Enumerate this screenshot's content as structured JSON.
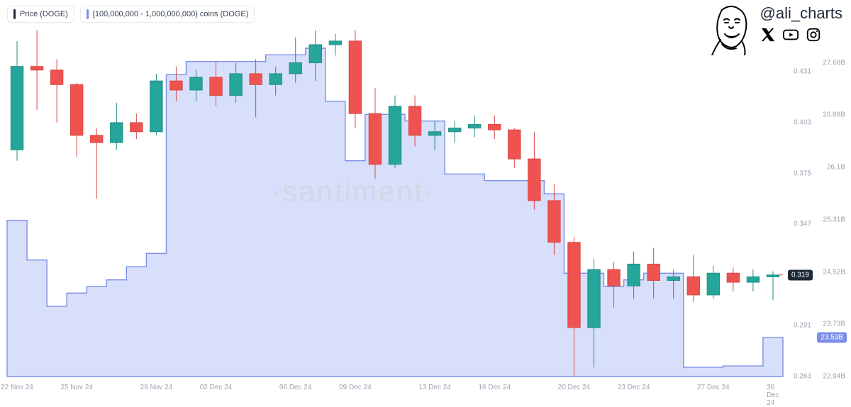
{
  "legend": {
    "price": {
      "label": "Price (DOGE)",
      "color": "#1f2937"
    },
    "supply": {
      "label": "[100,000,000 - 1,000,000,000) coins (DOGE)",
      "color": "#7d8fe8"
    }
  },
  "branding": {
    "handle": "@ali_charts",
    "socials": [
      "x-icon",
      "youtube-icon",
      "instagram-icon"
    ]
  },
  "watermark": "·santiment·",
  "watermark_style": {
    "fontsize": 42,
    "color": "#d1d5db"
  },
  "colors": {
    "candle_up_fill": "#26a69a",
    "candle_up_border": "#1e8e82",
    "candle_down_fill": "#ef5350",
    "candle_down_border": "#d84745",
    "area_fill": "#d8dffa",
    "area_stroke": "#7d8fe8",
    "axis_text": "#9ca3af",
    "background": "#ffffff"
  },
  "chart": {
    "type": "candlestick+area",
    "x_dates": [
      "22 Nov 24",
      "23 Nov 24",
      "24 Nov 24",
      "25 Nov 24",
      "26 Nov 24",
      "27 Nov 24",
      "28 Nov 24",
      "29 Nov 24",
      "30 Nov 24",
      "01 Dec 24",
      "02 Dec 24",
      "03 Dec 24",
      "04 Dec 24",
      "05 Dec 24",
      "06 Dec 24",
      "07 Dec 24",
      "08 Dec 24",
      "09 Dec 24",
      "10 Dec 24",
      "11 Dec 24",
      "12 Dec 24",
      "13 Dec 24",
      "14 Dec 24",
      "15 Dec 24",
      "16 Dec 24",
      "17 Dec 24",
      "18 Dec 24",
      "19 Dec 24",
      "20 Dec 24",
      "21 Dec 24",
      "22 Dec 24",
      "23 Dec 24",
      "24 Dec 24",
      "25 Dec 24",
      "26 Dec 24",
      "27 Dec 24",
      "28 Dec 24",
      "29 Dec 24",
      "30 Dec 24"
    ],
    "price_axis": {
      "min": 0.263,
      "max": 0.455,
      "ticks": [
        0.263,
        0.291,
        0.319,
        0.347,
        0.375,
        0.403,
        0.431
      ],
      "current_flag": "0.319"
    },
    "supply_axis": {
      "min": 22.94,
      "max": 28.2,
      "ticks": [
        22.94,
        23.73,
        24.52,
        25.31,
        26.1,
        26.89,
        27.68
      ],
      "tick_labels": [
        "22.94B",
        "23.73B",
        "24.52B",
        "25.31B",
        "26.1B",
        "26.89B",
        "27.68B"
      ],
      "current_flag": "23.53B"
    },
    "x_ticks": [
      "22 Nov 24",
      "25 Nov 24",
      "29 Nov 24",
      "02 Dec 24",
      "06 Dec 24",
      "09 Dec 24",
      "13 Dec 24",
      "16 Dec 24",
      "20 Dec 24",
      "23 Dec 24",
      "27 Dec 24",
      "30 Dec 24"
    ],
    "candles": [
      {
        "o": 0.388,
        "h": 0.448,
        "l": 0.382,
        "c": 0.434
      },
      {
        "o": 0.434,
        "h": 0.454,
        "l": 0.41,
        "c": 0.432
      },
      {
        "o": 0.432,
        "h": 0.438,
        "l": 0.403,
        "c": 0.424
      },
      {
        "o": 0.424,
        "h": 0.425,
        "l": 0.384,
        "c": 0.396
      },
      {
        "o": 0.396,
        "h": 0.4,
        "l": 0.361,
        "c": 0.392
      },
      {
        "o": 0.392,
        "h": 0.414,
        "l": 0.388,
        "c": 0.403
      },
      {
        "o": 0.403,
        "h": 0.408,
        "l": 0.394,
        "c": 0.398
      },
      {
        "o": 0.398,
        "h": 0.43,
        "l": 0.396,
        "c": 0.426
      },
      {
        "o": 0.426,
        "h": 0.434,
        "l": 0.415,
        "c": 0.421
      },
      {
        "o": 0.421,
        "h": 0.432,
        "l": 0.415,
        "c": 0.428
      },
      {
        "o": 0.428,
        "h": 0.437,
        "l": 0.412,
        "c": 0.418
      },
      {
        "o": 0.418,
        "h": 0.436,
        "l": 0.414,
        "c": 0.43
      },
      {
        "o": 0.43,
        "h": 0.438,
        "l": 0.406,
        "c": 0.424
      },
      {
        "o": 0.424,
        "h": 0.434,
        "l": 0.418,
        "c": 0.43
      },
      {
        "o": 0.43,
        "h": 0.45,
        "l": 0.425,
        "c": 0.436
      },
      {
        "o": 0.436,
        "h": 0.454,
        "l": 0.426,
        "c": 0.446
      },
      {
        "o": 0.446,
        "h": 0.452,
        "l": 0.44,
        "c": 0.448
      },
      {
        "o": 0.448,
        "h": 0.454,
        "l": 0.4,
        "c": 0.408
      },
      {
        "o": 0.408,
        "h": 0.422,
        "l": 0.372,
        "c": 0.38
      },
      {
        "o": 0.38,
        "h": 0.418,
        "l": 0.378,
        "c": 0.412
      },
      {
        "o": 0.412,
        "h": 0.418,
        "l": 0.39,
        "c": 0.396
      },
      {
        "o": 0.396,
        "h": 0.404,
        "l": 0.388,
        "c": 0.398
      },
      {
        "o": 0.398,
        "h": 0.404,
        "l": 0.392,
        "c": 0.4
      },
      {
        "o": 0.4,
        "h": 0.407,
        "l": 0.395,
        "c": 0.402
      },
      {
        "o": 0.402,
        "h": 0.407,
        "l": 0.394,
        "c": 0.399
      },
      {
        "o": 0.399,
        "h": 0.4,
        "l": 0.378,
        "c": 0.383
      },
      {
        "o": 0.383,
        "h": 0.398,
        "l": 0.355,
        "c": 0.36
      },
      {
        "o": 0.36,
        "h": 0.369,
        "l": 0.33,
        "c": 0.337
      },
      {
        "o": 0.337,
        "h": 0.34,
        "l": 0.263,
        "c": 0.29
      },
      {
        "o": 0.29,
        "h": 0.328,
        "l": 0.268,
        "c": 0.322
      },
      {
        "o": 0.322,
        "h": 0.326,
        "l": 0.301,
        "c": 0.313
      },
      {
        "o": 0.313,
        "h": 0.332,
        "l": 0.306,
        "c": 0.325
      },
      {
        "o": 0.325,
        "h": 0.334,
        "l": 0.306,
        "c": 0.316
      },
      {
        "o": 0.316,
        "h": 0.322,
        "l": 0.306,
        "c": 0.318
      },
      {
        "o": 0.318,
        "h": 0.33,
        "l": 0.304,
        "c": 0.308
      },
      {
        "o": 0.308,
        "h": 0.324,
        "l": 0.306,
        "c": 0.32
      },
      {
        "o": 0.32,
        "h": 0.323,
        "l": 0.31,
        "c": 0.315
      },
      {
        "o": 0.315,
        "h": 0.322,
        "l": 0.31,
        "c": 0.318
      },
      {
        "o": 0.318,
        "h": 0.321,
        "l": 0.305,
        "c": 0.319
      }
    ],
    "supply_values": [
      25.3,
      24.7,
      24.0,
      24.2,
      24.3,
      24.4,
      24.6,
      24.8,
      27.5,
      27.7,
      27.7,
      27.7,
      27.7,
      27.8,
      27.8,
      27.9,
      27.1,
      26.2,
      26.9,
      26.9,
      26.8,
      26.8,
      26.0,
      26.0,
      25.9,
      25.9,
      25.9,
      25.7,
      24.5,
      24.5,
      24.3,
      24.4,
      24.5,
      24.5,
      23.08,
      23.08,
      23.1,
      23.1,
      23.53
    ],
    "candle_width": 0.62
  }
}
